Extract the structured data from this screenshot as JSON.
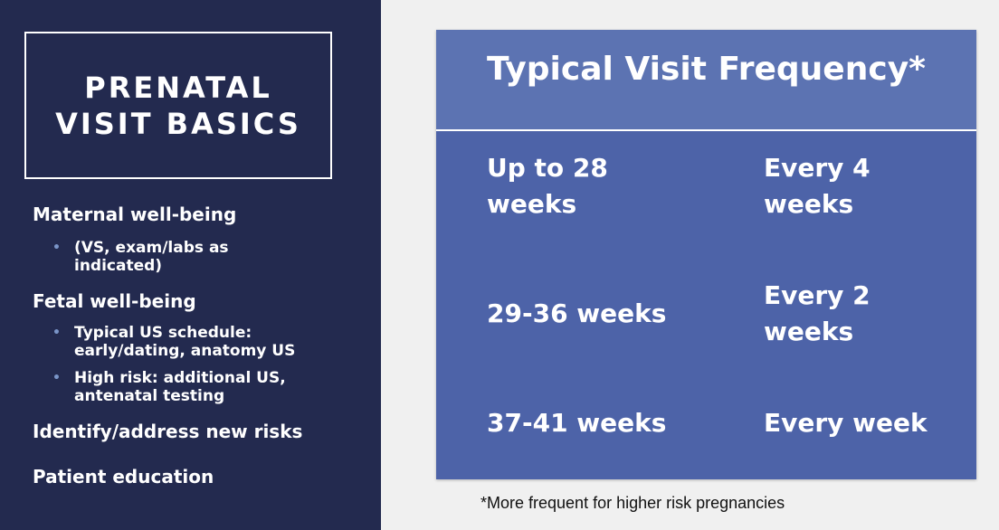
{
  "left_panel": {
    "title_lines": [
      "PRENATAL",
      "VISIT BASICS"
    ],
    "sections": [
      {
        "heading": "Maternal well-being",
        "subitems": [
          "(VS, exam/labs as indicated)"
        ]
      },
      {
        "heading": "Fetal well-being",
        "subitems": [
          "Typical US schedule: early/dating, anatomy US",
          "High risk: additional US, antenatal testing"
        ]
      },
      {
        "heading": "Identify/address new risks",
        "subitems": []
      },
      {
        "heading": "Patient education",
        "subitems": []
      }
    ],
    "bullet_glyph": "•"
  },
  "table": {
    "title": "Typical Visit Frequency*",
    "rows": [
      {
        "period": "Up to 28 weeks",
        "frequency": "Every 4 weeks"
      },
      {
        "period": "29-36 weeks",
        "frequency": "Every 2 weeks"
      },
      {
        "period": "37-41 weeks",
        "frequency": "Every week"
      }
    ]
  },
  "footnote": "*More frequent for higher risk pregnancies",
  "colors": {
    "left_bg": "#232a4f",
    "table_bg": "#4d63a8",
    "table_header_bg": "#5c73b2",
    "bullet": "#7a95c8",
    "page_bg": "#f0f0f0"
  }
}
